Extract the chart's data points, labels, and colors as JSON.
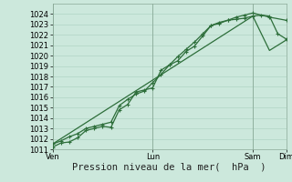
{
  "bg_color": "#cce8dc",
  "grid_color": "#b0d4c4",
  "line_color": "#2d6e3a",
  "ylim": [
    1011,
    1025
  ],
  "yticks": [
    1011,
    1012,
    1013,
    1014,
    1015,
    1016,
    1017,
    1018,
    1019,
    1020,
    1021,
    1022,
    1023,
    1024
  ],
  "xlabel": "Pression niveau de la mer(  hPa  )",
  "xlabel_fontsize": 7.5,
  "tick_fontsize": 6,
  "xtick_labels": [
    "Ven",
    "Lun",
    "Sam",
    "Dim"
  ],
  "xtick_positions": [
    0,
    3,
    6,
    7
  ],
  "x_total_days": 7,
  "series": [
    {
      "x": [
        0.0,
        0.25,
        0.5,
        0.75,
        1.0,
        1.25,
        1.5,
        1.75,
        2.0,
        2.25,
        2.5,
        2.75,
        3.0,
        3.25,
        3.5,
        3.75,
        4.0,
        4.25,
        4.5,
        4.75,
        5.0,
        5.25,
        5.5,
        5.75,
        6.0,
        6.25,
        6.5,
        6.75,
        7.0
      ],
      "y": [
        1011.5,
        1011.8,
        1012.2,
        1012.5,
        1013.0,
        1013.2,
        1013.4,
        1013.6,
        1015.2,
        1015.8,
        1016.3,
        1016.6,
        1017.4,
        1018.2,
        1019.1,
        1019.9,
        1020.6,
        1021.3,
        1022.1,
        1022.9,
        1023.2,
        1023.4,
        1023.5,
        1023.6,
        1023.8,
        1023.9,
        1023.8,
        1022.1,
        1021.6
      ],
      "marker": "+",
      "markersize": 3.5,
      "linewidth": 0.9
    },
    {
      "x": [
        0.0,
        0.25,
        0.5,
        0.75,
        1.0,
        1.25,
        1.5,
        1.75,
        2.0,
        2.25,
        2.5,
        2.75,
        3.0,
        3.25,
        3.5,
        3.75,
        4.0,
        4.25,
        4.5,
        4.75,
        5.0,
        5.25,
        5.5,
        5.75,
        6.0,
        6.5,
        7.0
      ],
      "y": [
        1011.2,
        1011.6,
        1011.7,
        1012.1,
        1012.8,
        1013.0,
        1013.2,
        1013.1,
        1014.8,
        1015.3,
        1016.5,
        1016.7,
        1016.9,
        1018.6,
        1019.1,
        1019.5,
        1020.4,
        1020.9,
        1021.9,
        1022.9,
        1023.1,
        1023.4,
        1023.7,
        1023.9,
        1024.1,
        1023.7,
        1023.4
      ],
      "marker": "+",
      "markersize": 3.5,
      "linewidth": 0.9
    },
    {
      "x": [
        0.0,
        6.0,
        6.5,
        7.0
      ],
      "y": [
        1011.5,
        1023.8,
        1020.5,
        1021.5
      ],
      "marker": "None",
      "markersize": 0,
      "linewidth": 0.9
    }
  ]
}
